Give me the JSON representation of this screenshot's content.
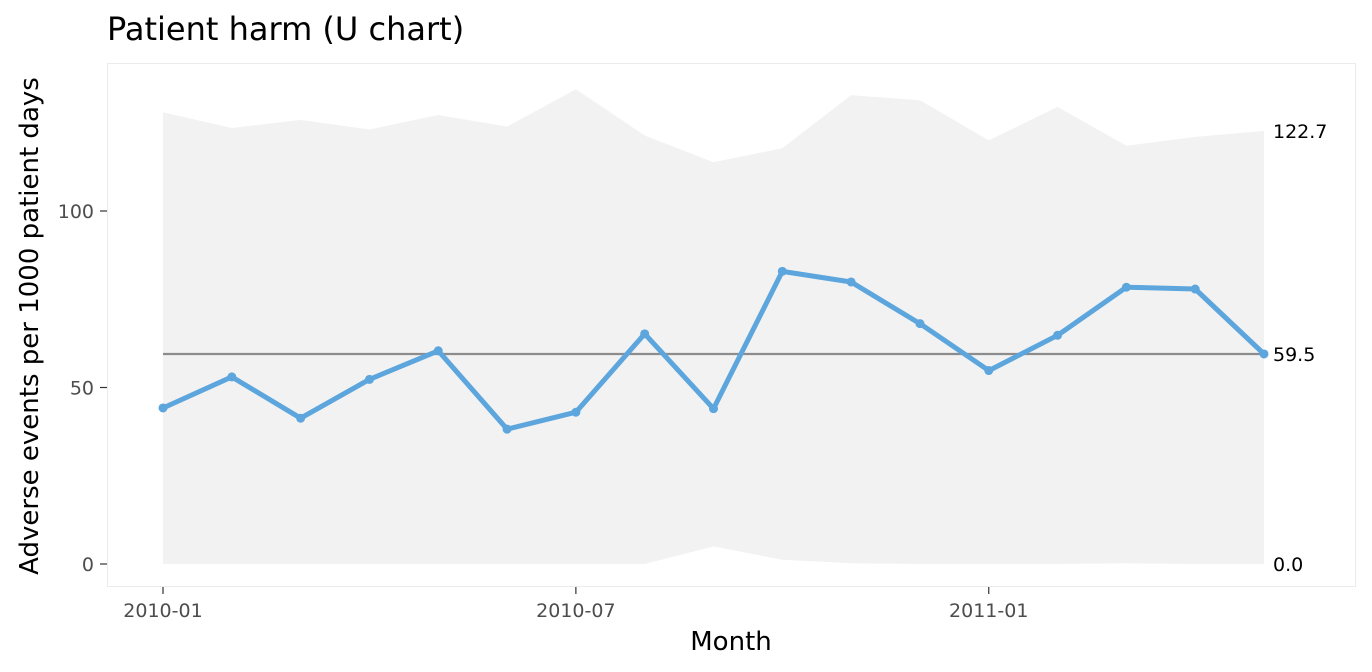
{
  "chart_data": {
    "type": "line",
    "title": "Patient harm (U chart)",
    "xlabel": "Month",
    "ylabel": "Adverse events per 1000 patient days",
    "x": [
      "2010-01",
      "2010-02",
      "2010-03",
      "2010-04",
      "2010-05",
      "2010-06",
      "2010-07",
      "2010-08",
      "2010-09",
      "2010-10",
      "2010-11",
      "2010-12",
      "2011-01",
      "2011-02",
      "2011-03",
      "2011-04",
      "2011-05"
    ],
    "x_ticks": [
      "2010-01",
      "2010-07",
      "2011-01"
    ],
    "y_ticks": [
      0,
      50,
      100
    ],
    "ylim": [
      -7,
      142
    ],
    "grid": false,
    "series": [
      {
        "values": [
          44.2,
          53.0,
          41.3,
          52.3,
          60.4,
          38.2,
          43.0,
          65.2,
          44.0,
          82.9,
          79.9,
          68.1,
          54.8,
          64.8,
          78.4,
          77.9,
          59.5
        ],
        "color": "#5ca6dd"
      }
    ],
    "center_line": {
      "value": 59.5,
      "color": "#8c8c8c"
    },
    "upper_limit": [
      128.0,
      123.5,
      125.8,
      123.1,
      127.2,
      123.9,
      134.5,
      121.4,
      113.8,
      117.8,
      132.8,
      131.4,
      120.0,
      129.5,
      118.5,
      121.0,
      122.7
    ],
    "lower_limit": [
      0,
      0,
      0,
      0,
      0,
      0,
      0,
      0,
      5.0,
      1.2,
      0.2,
      0,
      0,
      0,
      0.2,
      0,
      0
    ],
    "limit_band_color": "#f2f2f2",
    "end_labels": {
      "upper": "122.7",
      "center": "59.5",
      "lower": "0.0"
    }
  }
}
